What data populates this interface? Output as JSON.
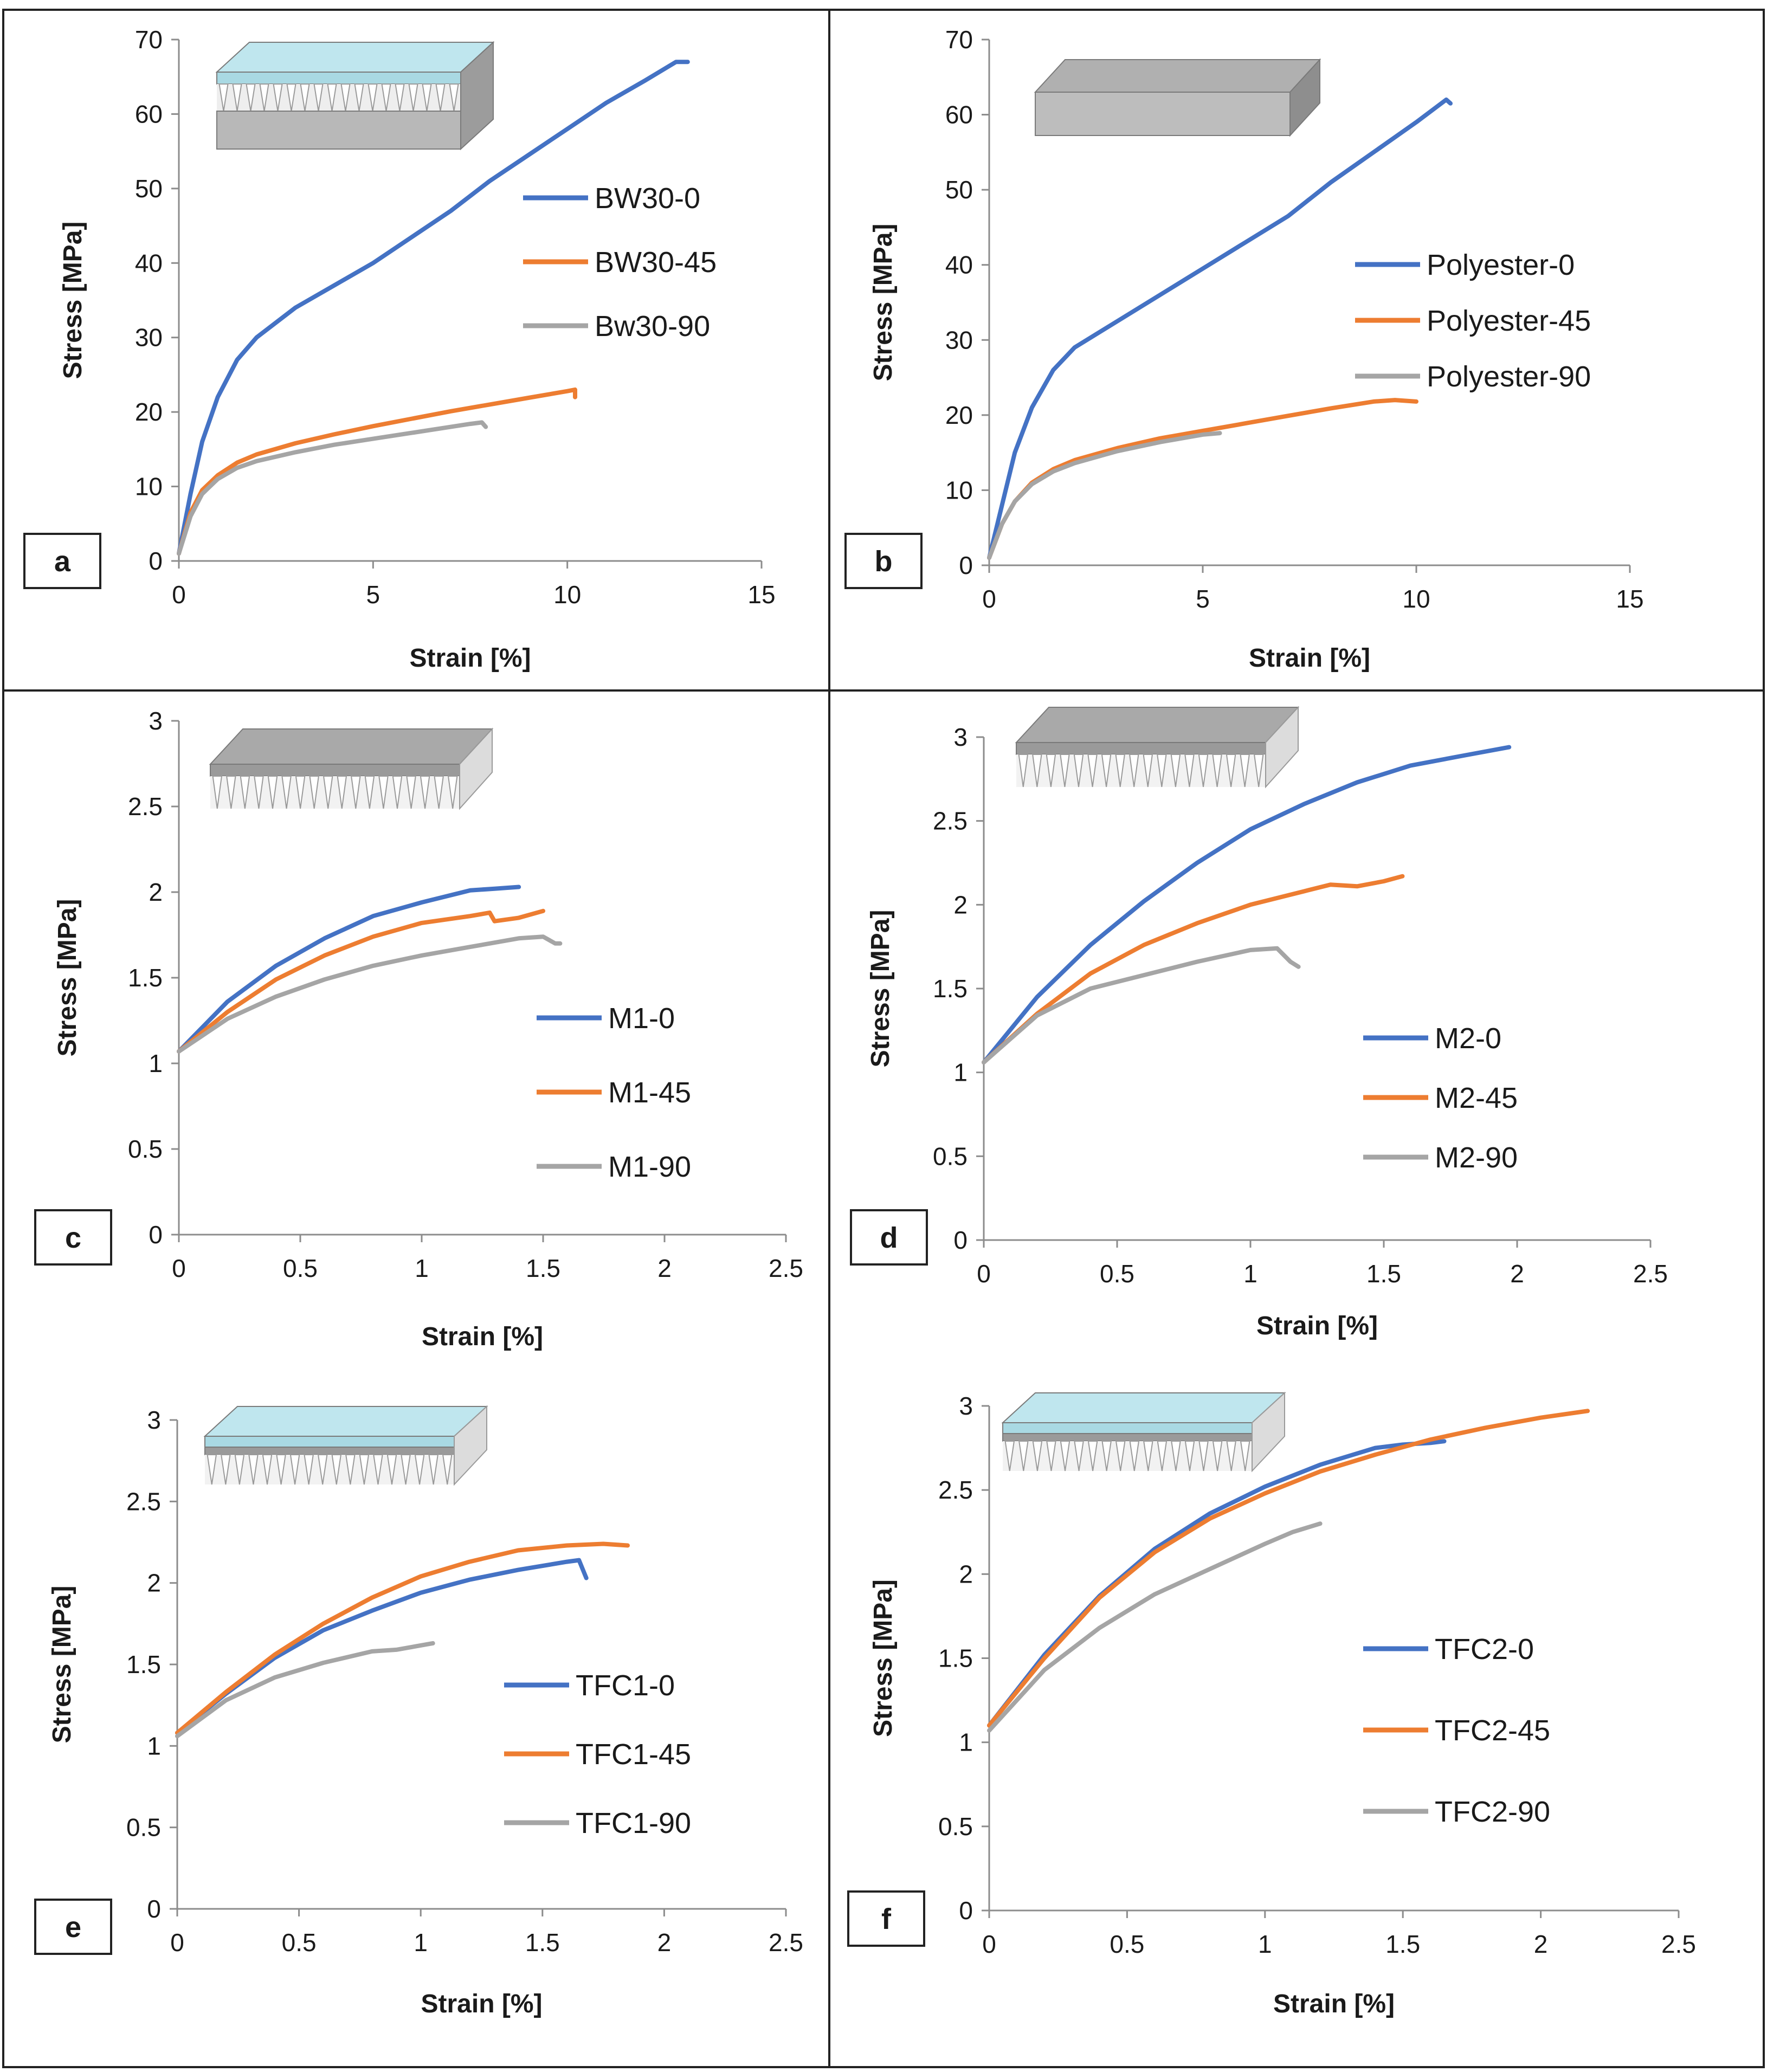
{
  "colors": {
    "blue": "#4472C4",
    "orange": "#ED7D31",
    "gray": "#A5A5A5",
    "grid_border": "#222222"
  },
  "chart_data": [
    {
      "type": "line",
      "panel_label": "a",
      "xlabel": "Strain  [%]",
      "ylabel": "Stress [MPa]",
      "xlim": [
        0,
        15
      ],
      "ylim": [
        0,
        70
      ],
      "xticks": [
        0,
        5,
        10,
        15
      ],
      "yticks": [
        0,
        10,
        20,
        30,
        40,
        50,
        60,
        70
      ],
      "xtick_labels": [
        "0",
        "5",
        "10",
        "15"
      ],
      "ytick_labels": [
        "0",
        "10",
        "20",
        "30",
        "40",
        "50",
        "60",
        "70"
      ],
      "legend_position": "center-right",
      "inset_icon": "membrane-on-porous-layer-icon",
      "series": [
        {
          "name": "BW30-0",
          "color": "#4472C4",
          "x": [
            0,
            0.3,
            0.6,
            1.0,
            1.5,
            2.0,
            3.0,
            4.0,
            5.0,
            6.0,
            7.0,
            8.0,
            9.0,
            10.0,
            11.0,
            12.0,
            12.8,
            13.1
          ],
          "y": [
            1,
            9,
            16,
            22,
            27,
            30,
            34,
            37,
            40,
            43.5,
            47,
            51,
            54.5,
            58,
            61.5,
            64.5,
            67,
            67
          ]
        },
        {
          "name": "BW30-45",
          "color": "#ED7D31",
          "x": [
            0,
            0.3,
            0.6,
            1.0,
            1.5,
            2.0,
            3.0,
            4.0,
            5.0,
            6.0,
            7.0,
            8.0,
            9.0,
            10.0,
            10.2,
            10.2
          ],
          "y": [
            1,
            6.5,
            9.5,
            11.5,
            13.2,
            14.3,
            15.8,
            17,
            18.1,
            19.1,
            20.1,
            21,
            21.9,
            22.8,
            23,
            22
          ]
        },
        {
          "name": "Bw30-90",
          "color": "#A5A5A5",
          "x": [
            0,
            0.3,
            0.6,
            1.0,
            1.5,
            2.0,
            3.0,
            4.0,
            5.0,
            6.0,
            7.0,
            7.5,
            7.8,
            7.9
          ],
          "y": [
            1,
            6,
            9,
            11,
            12.5,
            13.4,
            14.6,
            15.6,
            16.4,
            17.2,
            18,
            18.4,
            18.6,
            18
          ]
        }
      ]
    },
    {
      "type": "line",
      "panel_label": "b",
      "xlabel": "Strain [%]",
      "ylabel": "Stress [MPa]",
      "xlim": [
        0,
        15
      ],
      "ylim": [
        0,
        70
      ],
      "xticks": [
        0,
        5,
        10,
        15
      ],
      "yticks": [
        0,
        10,
        20,
        30,
        40,
        50,
        60,
        70
      ],
      "xtick_labels": [
        "0",
        "5",
        "10",
        "15"
      ],
      "ytick_labels": [
        "0",
        "10",
        "20",
        "30",
        "40",
        "50",
        "60",
        "70"
      ],
      "legend_position": "center-right",
      "inset_icon": "porous-block-icon",
      "series": [
        {
          "name": "Polyester-0",
          "color": "#4472C4",
          "x": [
            0,
            0.3,
            0.6,
            1.0,
            1.5,
            2.0,
            3.0,
            4.0,
            5.0,
            6.0,
            7.0,
            8.0,
            9.0,
            10.0,
            10.7,
            10.8
          ],
          "y": [
            1,
            8,
            15,
            21,
            26,
            29,
            32.5,
            36,
            39.5,
            43,
            46.5,
            51,
            55,
            59,
            62,
            61.5
          ]
        },
        {
          "name": "Polyester-45",
          "color": "#ED7D31",
          "x": [
            0,
            0.3,
            0.6,
            1.0,
            1.5,
            2.0,
            3.0,
            4.0,
            5.0,
            6.0,
            7.0,
            8.0,
            9.0,
            9.5,
            10.0
          ],
          "y": [
            1,
            5.5,
            8.5,
            11,
            12.8,
            14,
            15.6,
            16.9,
            17.9,
            18.9,
            19.9,
            20.9,
            21.8,
            22,
            21.8
          ]
        },
        {
          "name": "Polyester-90",
          "color": "#A5A5A5",
          "x": [
            0,
            0.3,
            0.6,
            1.0,
            1.5,
            2.0,
            3.0,
            4.0,
            5.0,
            5.4
          ],
          "y": [
            1,
            5.5,
            8.5,
            10.8,
            12.5,
            13.6,
            15.2,
            16.4,
            17.4,
            17.6
          ]
        }
      ]
    },
    {
      "type": "line",
      "panel_label": "c",
      "xlabel": "Strain  [%]",
      "ylabel": "Stress [MPa]",
      "xlim": [
        0,
        2.5
      ],
      "ylim": [
        0,
        3
      ],
      "xticks": [
        0,
        0.5,
        1,
        1.5,
        2,
        2.5
      ],
      "yticks": [
        0,
        0.5,
        1,
        1.5,
        2,
        2.5,
        3
      ],
      "xtick_labels": [
        "0",
        "0.5",
        "1",
        "1.5",
        "2",
        "2.5"
      ],
      "ytick_labels": [
        "0",
        "0.5",
        "1",
        "1.5",
        "2",
        "2.5",
        "3"
      ],
      "legend_position": "center-right",
      "inset_icon": "porous-support-icon",
      "series": [
        {
          "name": "M1-0",
          "color": "#4472C4",
          "x": [
            0,
            0.2,
            0.4,
            0.6,
            0.8,
            1.0,
            1.2,
            1.3,
            1.4
          ],
          "y": [
            1.07,
            1.36,
            1.57,
            1.73,
            1.86,
            1.94,
            2.01,
            2.02,
            2.03
          ]
        },
        {
          "name": "M1-45",
          "color": "#ED7D31",
          "x": [
            0,
            0.2,
            0.4,
            0.6,
            0.8,
            1.0,
            1.2,
            1.28,
            1.3,
            1.4,
            1.5
          ],
          "y": [
            1.07,
            1.3,
            1.49,
            1.63,
            1.74,
            1.82,
            1.86,
            1.88,
            1.83,
            1.85,
            1.89
          ]
        },
        {
          "name": "M1-90",
          "color": "#A5A5A5",
          "x": [
            0,
            0.2,
            0.4,
            0.6,
            0.8,
            1.0,
            1.2,
            1.4,
            1.5,
            1.55,
            1.57
          ],
          "y": [
            1.07,
            1.26,
            1.39,
            1.49,
            1.57,
            1.63,
            1.68,
            1.73,
            1.74,
            1.7,
            1.7
          ]
        }
      ]
    },
    {
      "type": "line",
      "panel_label": "d",
      "xlabel": "Strain  [%]",
      "ylabel": "Stress [MPa]",
      "xlim": [
        0,
        2.5
      ],
      "ylim": [
        0,
        3
      ],
      "xticks": [
        0,
        0.5,
        1,
        1.5,
        2,
        2.5
      ],
      "yticks": [
        0,
        0.5,
        1,
        1.5,
        2,
        2.5,
        3
      ],
      "xtick_labels": [
        "0",
        "0.5",
        "1",
        "1.5",
        "2",
        "2.5"
      ],
      "ytick_labels": [
        "0",
        "0.5",
        "1",
        "1.5",
        "2",
        "2.5",
        "3"
      ],
      "legend_position": "bottom-right",
      "inset_icon": "porous-support-icon",
      "series": [
        {
          "name": "M2-0",
          "color": "#4472C4",
          "x": [
            0,
            0.2,
            0.4,
            0.6,
            0.8,
            1.0,
            1.2,
            1.4,
            1.6,
            1.8,
            1.97
          ],
          "y": [
            1.06,
            1.45,
            1.76,
            2.02,
            2.25,
            2.45,
            2.6,
            2.73,
            2.83,
            2.89,
            2.94
          ]
        },
        {
          "name": "M2-45",
          "color": "#ED7D31",
          "x": [
            0,
            0.2,
            0.4,
            0.6,
            0.8,
            1.0,
            1.2,
            1.3,
            1.4,
            1.5,
            1.57
          ],
          "y": [
            1.06,
            1.35,
            1.59,
            1.76,
            1.89,
            2.0,
            2.08,
            2.12,
            2.11,
            2.14,
            2.17
          ]
        },
        {
          "name": "M2-90",
          "color": "#A5A5A5",
          "x": [
            0,
            0.2,
            0.4,
            0.6,
            0.8,
            1.0,
            1.1,
            1.15,
            1.18
          ],
          "y": [
            1.06,
            1.34,
            1.5,
            1.58,
            1.66,
            1.73,
            1.74,
            1.66,
            1.63
          ]
        }
      ]
    },
    {
      "type": "line",
      "panel_label": "e",
      "xlabel": "Strain [%]",
      "ylabel": "Stress [MPa]",
      "xlim": [
        0,
        2.5
      ],
      "ylim": [
        0,
        3
      ],
      "xticks": [
        0,
        0.5,
        1,
        1.5,
        2,
        2.5
      ],
      "yticks": [
        0,
        0.5,
        1,
        1.5,
        2,
        2.5,
        3
      ],
      "xtick_labels": [
        "0",
        "0.5",
        "1",
        "1.5",
        "2",
        "2.5"
      ],
      "ytick_labels": [
        "0",
        "0.5",
        "1",
        "1.5",
        "2",
        "2.5",
        "3"
      ],
      "legend_position": "bottom-right",
      "inset_icon": "membrane-on-support-icon",
      "series": [
        {
          "name": "TFC1-0",
          "color": "#4472C4",
          "x": [
            0,
            0.2,
            0.4,
            0.6,
            0.8,
            1.0,
            1.2,
            1.4,
            1.6,
            1.65,
            1.68
          ],
          "y": [
            1.08,
            1.32,
            1.54,
            1.71,
            1.83,
            1.94,
            2.02,
            2.08,
            2.13,
            2.14,
            2.03
          ]
        },
        {
          "name": "TFC1-45",
          "color": "#ED7D31",
          "x": [
            0,
            0.2,
            0.4,
            0.6,
            0.8,
            1.0,
            1.2,
            1.4,
            1.6,
            1.75,
            1.85
          ],
          "y": [
            1.08,
            1.33,
            1.56,
            1.75,
            1.91,
            2.04,
            2.13,
            2.2,
            2.23,
            2.24,
            2.23
          ]
        },
        {
          "name": "TFC1-90",
          "color": "#A5A5A5",
          "x": [
            0,
            0.2,
            0.4,
            0.6,
            0.8,
            0.9,
            1.05
          ],
          "y": [
            1.06,
            1.28,
            1.42,
            1.51,
            1.58,
            1.59,
            1.63
          ]
        }
      ]
    },
    {
      "type": "line",
      "panel_label": "f",
      "xlabel": "Strain [%]",
      "ylabel": "Stress [MPa]",
      "xlim": [
        0,
        2.5
      ],
      "ylim": [
        0,
        3
      ],
      "xticks": [
        0,
        0.5,
        1,
        1.5,
        2,
        2.5
      ],
      "yticks": [
        0,
        0.5,
        1,
        1.5,
        2,
        2.5,
        3
      ],
      "xtick_labels": [
        "0",
        "0.5",
        "1",
        "1.5",
        "2",
        "2.5"
      ],
      "ytick_labels": [
        "0",
        "0.5",
        "1",
        "1.5",
        "2",
        "2.5",
        "3"
      ],
      "legend_position": "bottom-right",
      "inset_icon": "membrane-on-support-icon",
      "series": [
        {
          "name": "TFC2-0",
          "color": "#4472C4",
          "x": [
            0,
            0.2,
            0.4,
            0.6,
            0.8,
            1.0,
            1.2,
            1.4,
            1.5,
            1.6,
            1.65
          ],
          "y": [
            1.1,
            1.52,
            1.87,
            2.15,
            2.36,
            2.52,
            2.65,
            2.75,
            2.77,
            2.78,
            2.79
          ]
        },
        {
          "name": "TFC2-45",
          "color": "#ED7D31",
          "x": [
            0,
            0.2,
            0.4,
            0.6,
            0.8,
            1.0,
            1.2,
            1.4,
            1.6,
            1.8,
            2.0,
            2.17
          ],
          "y": [
            1.1,
            1.5,
            1.86,
            2.13,
            2.33,
            2.48,
            2.61,
            2.71,
            2.8,
            2.87,
            2.93,
            2.97
          ]
        },
        {
          "name": "TFC2-90",
          "color": "#A5A5A5",
          "x": [
            0,
            0.2,
            0.4,
            0.6,
            0.8,
            1.0,
            1.1,
            1.2
          ],
          "y": [
            1.07,
            1.43,
            1.68,
            1.88,
            2.03,
            2.18,
            2.25,
            2.3
          ]
        }
      ]
    }
  ]
}
